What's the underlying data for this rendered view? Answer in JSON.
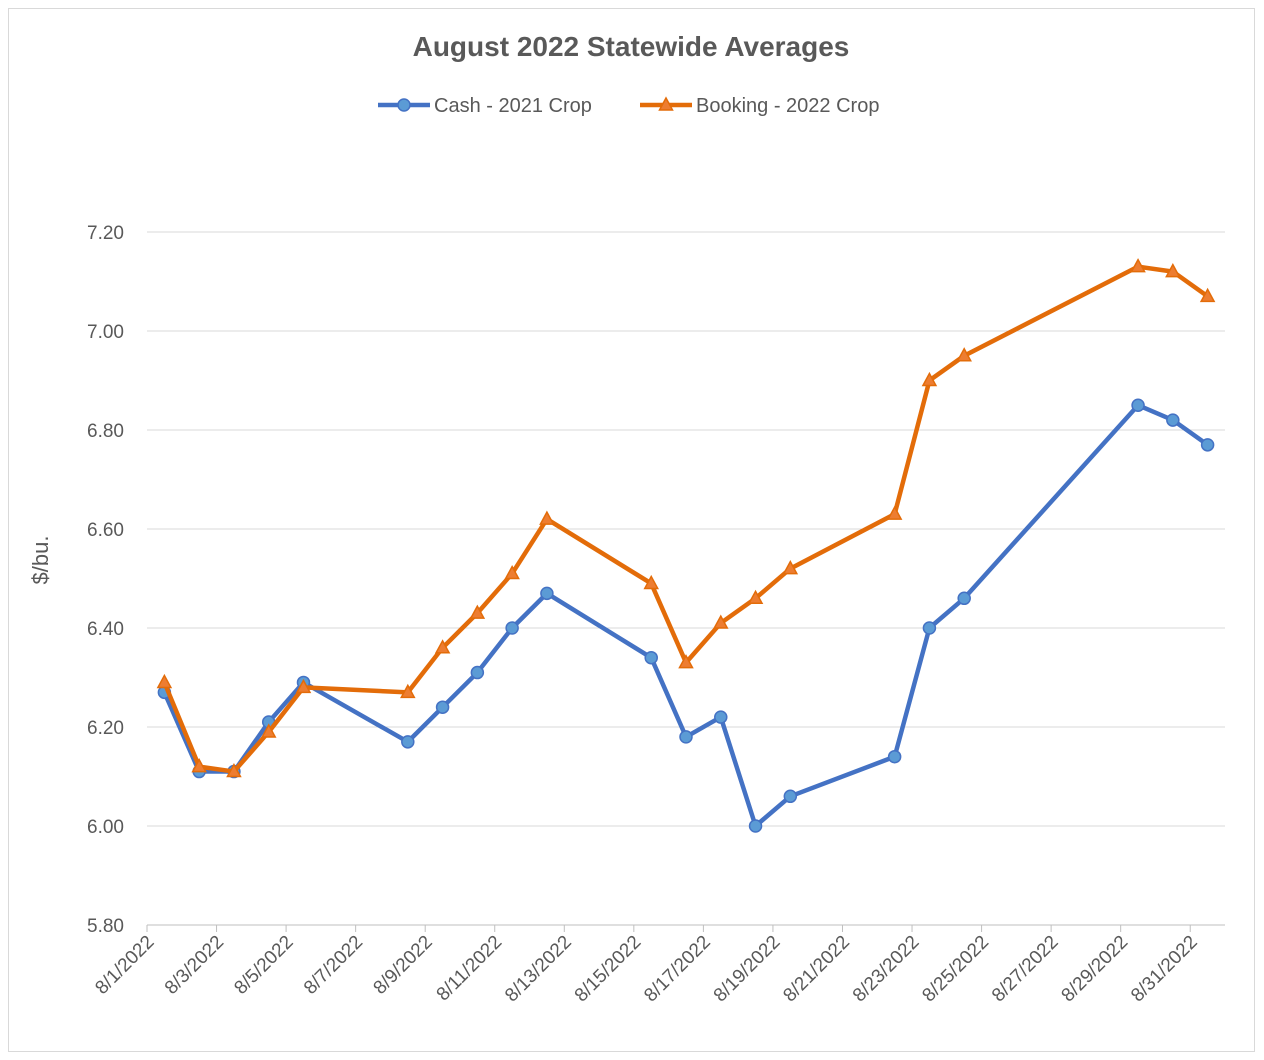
{
  "chart_data": {
    "type": "line",
    "title": "August 2022 Statewide Averages",
    "xlabel": "",
    "ylabel": "$/bu.",
    "ylim": [
      5.8,
      7.2
    ],
    "yticks": [
      "5.80",
      "6.00",
      "6.20",
      "6.40",
      "6.60",
      "6.80",
      "7.00",
      "7.20"
    ],
    "xlim": [
      "8/1/2022",
      "8/31/2022"
    ],
    "xticks": [
      "8/1/2022",
      "8/3/2022",
      "8/5/2022",
      "8/7/2022",
      "8/9/2022",
      "8/11/2022",
      "8/13/2022",
      "8/15/2022",
      "8/17/2022",
      "8/19/2022",
      "8/21/2022",
      "8/23/2022",
      "8/25/2022",
      "8/27/2022",
      "8/29/2022",
      "8/31/2022"
    ],
    "grid": true,
    "legend_position": "top",
    "x_days": [
      1,
      2,
      3,
      4,
      5,
      8,
      9,
      10,
      11,
      12,
      15,
      16,
      17,
      18,
      19,
      22,
      23,
      24,
      29,
      30,
      31
    ],
    "series": [
      {
        "name": "Cash - 2021 Crop",
        "color": "#4472c4",
        "marker": "circle",
        "values": [
          6.27,
          6.11,
          6.11,
          6.21,
          6.29,
          6.17,
          6.24,
          6.31,
          6.4,
          6.47,
          6.34,
          6.18,
          6.22,
          6.0,
          6.06,
          6.14,
          6.4,
          6.46,
          6.85,
          6.82,
          6.77
        ]
      },
      {
        "name": "Booking - 2022 Crop",
        "color": "#e36c09",
        "marker": "triangle",
        "values": [
          6.29,
          6.12,
          6.11,
          6.19,
          6.28,
          6.27,
          6.36,
          6.43,
          6.51,
          6.62,
          6.49,
          6.33,
          6.41,
          6.46,
          6.52,
          6.63,
          6.9,
          6.95,
          7.13,
          7.12,
          7.07
        ]
      }
    ]
  }
}
